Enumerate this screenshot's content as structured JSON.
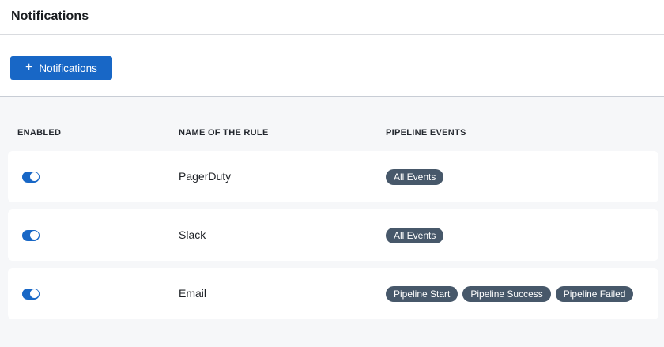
{
  "page": {
    "title": "Notifications"
  },
  "toolbar": {
    "add_button": {
      "icon": "+",
      "label": "Notifications"
    }
  },
  "table": {
    "columns": [
      {
        "key": "enabled",
        "label": "ENABLED"
      },
      {
        "key": "name",
        "label": "NAME OF THE RULE"
      },
      {
        "key": "events",
        "label": "PIPELINE EVENTS"
      }
    ],
    "rows": [
      {
        "enabled": true,
        "name": "PagerDuty",
        "events": [
          "All Events"
        ]
      },
      {
        "enabled": true,
        "name": "Slack",
        "events": [
          "All Events"
        ]
      },
      {
        "enabled": true,
        "name": "Email",
        "events": [
          "Pipeline Start",
          "Pipeline Success",
          "Pipeline Failed"
        ]
      }
    ]
  },
  "colors": {
    "primary_blue": "#1867C6",
    "badge_bg": "#47586A",
    "table_bg": "#F6F7F9",
    "table_top_border": "#C8CDD5",
    "title_divider": "#D9DBDF"
  }
}
